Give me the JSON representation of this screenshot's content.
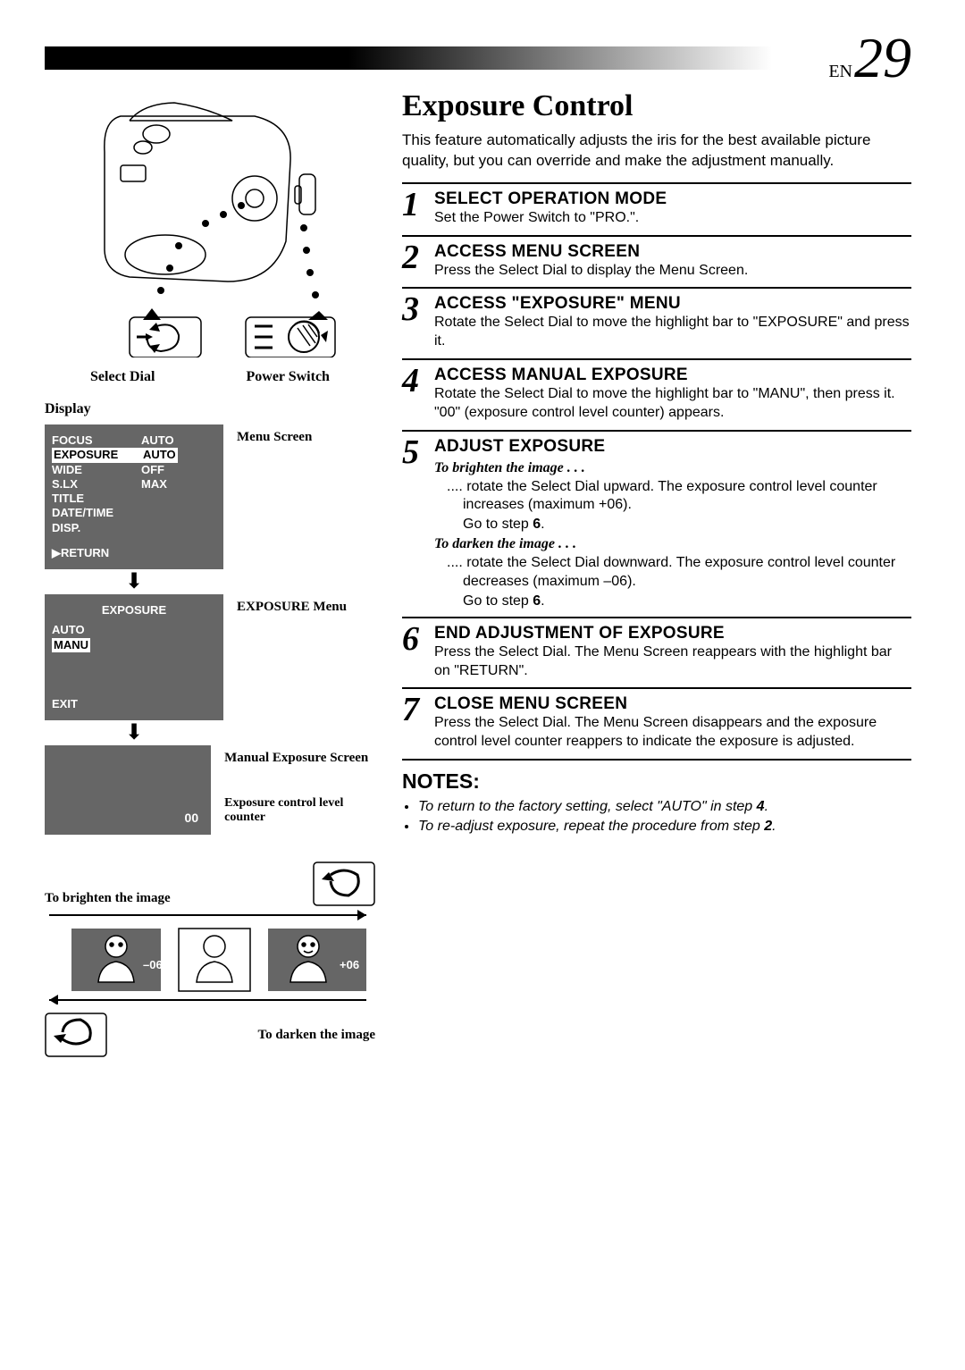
{
  "page": {
    "lang_abbrev": "EN",
    "number": "29"
  },
  "title": "Exposure Control",
  "intro": "This feature automatically adjusts the iris for the best available picture quality, but you can override and make the adjustment manually.",
  "camera": {
    "select_dial_label": "Select Dial",
    "power_switch_label": "Power Switch",
    "display_label": "Display"
  },
  "menu_screen": {
    "label": "Menu Screen",
    "rows": [
      {
        "c1": "FOCUS",
        "c2": "AUTO",
        "hl": false
      },
      {
        "c1": "EXPOSURE",
        "c2": "AUTO",
        "hl": true
      },
      {
        "c1": "WIDE",
        "c2": "OFF",
        "hl": false
      },
      {
        "c1": "S.LX",
        "c2": "MAX",
        "hl": false
      },
      {
        "c1": "TITLE",
        "c2": "",
        "hl": false
      },
      {
        "c1": "DATE/TIME DISP.",
        "c2": "",
        "hl": false
      }
    ],
    "return": "▶RETURN"
  },
  "exposure_menu": {
    "label": "EXPOSURE Menu",
    "heading": "EXPOSURE",
    "rows": [
      {
        "c1": "AUTO",
        "hl": false
      },
      {
        "c1": "MANU",
        "hl": true
      }
    ],
    "exit": "EXIT"
  },
  "manual_screen": {
    "label": "Manual Exposure Screen",
    "value": "00",
    "counter_label": "Exposure control level counter"
  },
  "exposure_diagram": {
    "brighten_label": "To brighten the image",
    "darken_label": "To darken the image",
    "min": "–06",
    "max": "+06"
  },
  "steps": [
    {
      "n": "1",
      "title": "SELECT OPERATION MODE",
      "text": "Set the Power Switch to \"PRO.\"."
    },
    {
      "n": "2",
      "title": "ACCESS MENU SCREEN",
      "text": "Press the Select Dial to display the Menu Screen."
    },
    {
      "n": "3",
      "title": "ACCESS \"EXPOSURE\" MENU",
      "text": "Rotate the Select Dial to move the highlight bar to \"EXPOSURE\" and press it."
    },
    {
      "n": "4",
      "title": "ACCESS MANUAL EXPOSURE",
      "text": "Rotate the Select Dial to move the highlight bar to \"MANU\", then press it. \"00\" (exposure control level counter) appears."
    },
    {
      "n": "5",
      "title": "ADJUST EXPOSURE",
      "sub1": "To brighten the image . . .",
      "bullet1": ".... rotate the Select Dial upward. The exposure control level counter increases (maximum +06).",
      "goto1": "Go to step 6.",
      "sub2": "To darken the image . . .",
      "bullet2": ".... rotate the Select Dial downward. The exposure control level counter decreases (maximum –06).",
      "goto2": "Go to step 6."
    },
    {
      "n": "6",
      "title": "END ADJUSTMENT OF EXPOSURE",
      "text": "Press the Select Dial. The Menu Screen reappears with the highlight bar on \"RETURN\"."
    },
    {
      "n": "7",
      "title": "CLOSE MENU SCREEN",
      "text": "Press the Select Dial. The Menu Screen disappears and the exposure control level counter reappers to indicate the exposure is adjusted."
    }
  ],
  "notes": {
    "title": "NOTES:",
    "items": [
      "To return to the factory setting, select \"AUTO\" in step 4.",
      "To re-adjust exposure, repeat the procedure from step 2."
    ]
  }
}
